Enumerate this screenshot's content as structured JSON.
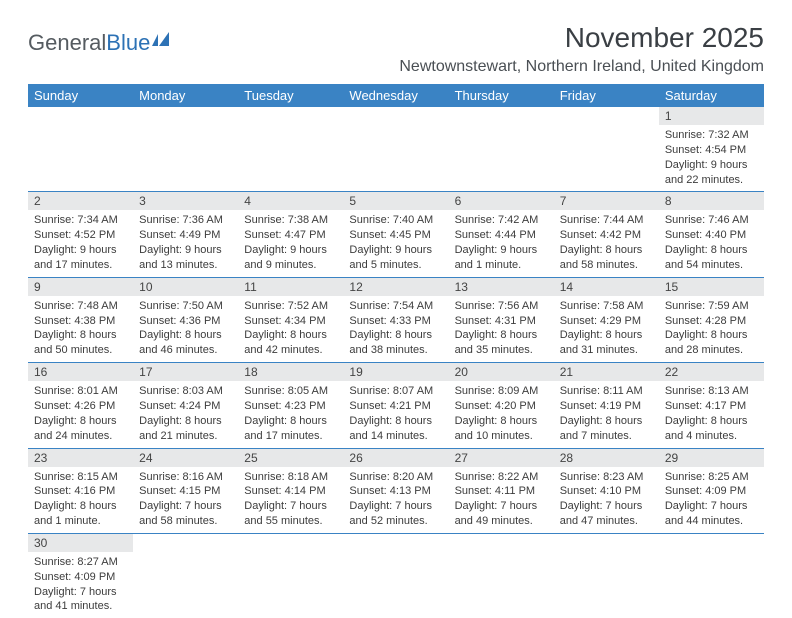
{
  "logo": {
    "part1": "General",
    "part2": "Blue"
  },
  "title": "November 2025",
  "location": "Newtownstewart, Northern Ireland, United Kingdom",
  "day_headers": [
    "Sunday",
    "Monday",
    "Tuesday",
    "Wednesday",
    "Thursday",
    "Friday",
    "Saturday"
  ],
  "colors": {
    "header_bg": "#3a83c4",
    "header_text": "#ffffff",
    "daynum_bg": "#e7e8e9",
    "border": "#3a83c4",
    "logo_gray": "#555b60",
    "logo_blue": "#2d72b5"
  },
  "weeks": [
    [
      null,
      null,
      null,
      null,
      null,
      null,
      {
        "n": "1",
        "sr": "Sunrise: 7:32 AM",
        "ss": "Sunset: 4:54 PM",
        "d1": "Daylight: 9 hours",
        "d2": "and 22 minutes."
      }
    ],
    [
      {
        "n": "2",
        "sr": "Sunrise: 7:34 AM",
        "ss": "Sunset: 4:52 PM",
        "d1": "Daylight: 9 hours",
        "d2": "and 17 minutes."
      },
      {
        "n": "3",
        "sr": "Sunrise: 7:36 AM",
        "ss": "Sunset: 4:49 PM",
        "d1": "Daylight: 9 hours",
        "d2": "and 13 minutes."
      },
      {
        "n": "4",
        "sr": "Sunrise: 7:38 AM",
        "ss": "Sunset: 4:47 PM",
        "d1": "Daylight: 9 hours",
        "d2": "and 9 minutes."
      },
      {
        "n": "5",
        "sr": "Sunrise: 7:40 AM",
        "ss": "Sunset: 4:45 PM",
        "d1": "Daylight: 9 hours",
        "d2": "and 5 minutes."
      },
      {
        "n": "6",
        "sr": "Sunrise: 7:42 AM",
        "ss": "Sunset: 4:44 PM",
        "d1": "Daylight: 9 hours",
        "d2": "and 1 minute."
      },
      {
        "n": "7",
        "sr": "Sunrise: 7:44 AM",
        "ss": "Sunset: 4:42 PM",
        "d1": "Daylight: 8 hours",
        "d2": "and 58 minutes."
      },
      {
        "n": "8",
        "sr": "Sunrise: 7:46 AM",
        "ss": "Sunset: 4:40 PM",
        "d1": "Daylight: 8 hours",
        "d2": "and 54 minutes."
      }
    ],
    [
      {
        "n": "9",
        "sr": "Sunrise: 7:48 AM",
        "ss": "Sunset: 4:38 PM",
        "d1": "Daylight: 8 hours",
        "d2": "and 50 minutes."
      },
      {
        "n": "10",
        "sr": "Sunrise: 7:50 AM",
        "ss": "Sunset: 4:36 PM",
        "d1": "Daylight: 8 hours",
        "d2": "and 46 minutes."
      },
      {
        "n": "11",
        "sr": "Sunrise: 7:52 AM",
        "ss": "Sunset: 4:34 PM",
        "d1": "Daylight: 8 hours",
        "d2": "and 42 minutes."
      },
      {
        "n": "12",
        "sr": "Sunrise: 7:54 AM",
        "ss": "Sunset: 4:33 PM",
        "d1": "Daylight: 8 hours",
        "d2": "and 38 minutes."
      },
      {
        "n": "13",
        "sr": "Sunrise: 7:56 AM",
        "ss": "Sunset: 4:31 PM",
        "d1": "Daylight: 8 hours",
        "d2": "and 35 minutes."
      },
      {
        "n": "14",
        "sr": "Sunrise: 7:58 AM",
        "ss": "Sunset: 4:29 PM",
        "d1": "Daylight: 8 hours",
        "d2": "and 31 minutes."
      },
      {
        "n": "15",
        "sr": "Sunrise: 7:59 AM",
        "ss": "Sunset: 4:28 PM",
        "d1": "Daylight: 8 hours",
        "d2": "and 28 minutes."
      }
    ],
    [
      {
        "n": "16",
        "sr": "Sunrise: 8:01 AM",
        "ss": "Sunset: 4:26 PM",
        "d1": "Daylight: 8 hours",
        "d2": "and 24 minutes."
      },
      {
        "n": "17",
        "sr": "Sunrise: 8:03 AM",
        "ss": "Sunset: 4:24 PM",
        "d1": "Daylight: 8 hours",
        "d2": "and 21 minutes."
      },
      {
        "n": "18",
        "sr": "Sunrise: 8:05 AM",
        "ss": "Sunset: 4:23 PM",
        "d1": "Daylight: 8 hours",
        "d2": "and 17 minutes."
      },
      {
        "n": "19",
        "sr": "Sunrise: 8:07 AM",
        "ss": "Sunset: 4:21 PM",
        "d1": "Daylight: 8 hours",
        "d2": "and 14 minutes."
      },
      {
        "n": "20",
        "sr": "Sunrise: 8:09 AM",
        "ss": "Sunset: 4:20 PM",
        "d1": "Daylight: 8 hours",
        "d2": "and 10 minutes."
      },
      {
        "n": "21",
        "sr": "Sunrise: 8:11 AM",
        "ss": "Sunset: 4:19 PM",
        "d1": "Daylight: 8 hours",
        "d2": "and 7 minutes."
      },
      {
        "n": "22",
        "sr": "Sunrise: 8:13 AM",
        "ss": "Sunset: 4:17 PM",
        "d1": "Daylight: 8 hours",
        "d2": "and 4 minutes."
      }
    ],
    [
      {
        "n": "23",
        "sr": "Sunrise: 8:15 AM",
        "ss": "Sunset: 4:16 PM",
        "d1": "Daylight: 8 hours",
        "d2": "and 1 minute."
      },
      {
        "n": "24",
        "sr": "Sunrise: 8:16 AM",
        "ss": "Sunset: 4:15 PM",
        "d1": "Daylight: 7 hours",
        "d2": "and 58 minutes."
      },
      {
        "n": "25",
        "sr": "Sunrise: 8:18 AM",
        "ss": "Sunset: 4:14 PM",
        "d1": "Daylight: 7 hours",
        "d2": "and 55 minutes."
      },
      {
        "n": "26",
        "sr": "Sunrise: 8:20 AM",
        "ss": "Sunset: 4:13 PM",
        "d1": "Daylight: 7 hours",
        "d2": "and 52 minutes."
      },
      {
        "n": "27",
        "sr": "Sunrise: 8:22 AM",
        "ss": "Sunset: 4:11 PM",
        "d1": "Daylight: 7 hours",
        "d2": "and 49 minutes."
      },
      {
        "n": "28",
        "sr": "Sunrise: 8:23 AM",
        "ss": "Sunset: 4:10 PM",
        "d1": "Daylight: 7 hours",
        "d2": "and 47 minutes."
      },
      {
        "n": "29",
        "sr": "Sunrise: 8:25 AM",
        "ss": "Sunset: 4:09 PM",
        "d1": "Daylight: 7 hours",
        "d2": "and 44 minutes."
      }
    ],
    [
      {
        "n": "30",
        "sr": "Sunrise: 8:27 AM",
        "ss": "Sunset: 4:09 PM",
        "d1": "Daylight: 7 hours",
        "d2": "and 41 minutes."
      },
      null,
      null,
      null,
      null,
      null,
      null
    ]
  ]
}
